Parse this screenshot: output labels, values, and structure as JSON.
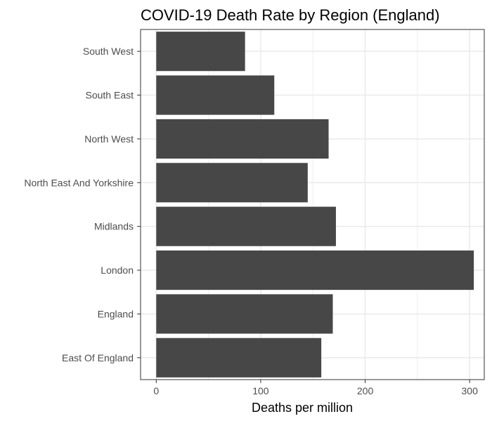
{
  "chart_data": {
    "type": "bar",
    "orientation": "horizontal",
    "title": "COVID-19 Death Rate by Region (England)",
    "xlabel": "Deaths per million",
    "ylabel": "",
    "categories": [
      "South West",
      "South East",
      "North West",
      "North East And Yorkshire",
      "Midlands",
      "London",
      "England",
      "East Of England"
    ],
    "values": [
      85,
      113,
      165,
      145,
      172,
      304,
      169,
      158
    ],
    "xlim": [
      -15,
      314
    ],
    "xticks": [
      0,
      100,
      200,
      300
    ],
    "xtick_labels": [
      "0",
      "100",
      "200",
      "300"
    ],
    "grid": true,
    "bar_color": "#474747",
    "grid_color": "#ebebeb",
    "panel_border_color": "#333333"
  }
}
